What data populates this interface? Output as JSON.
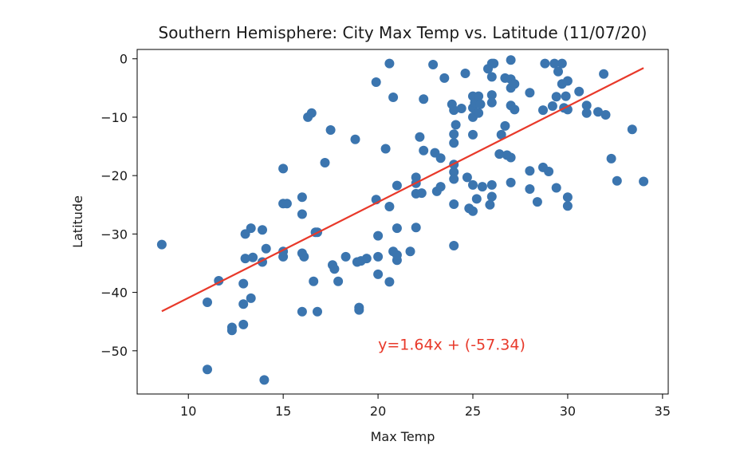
{
  "chart_data": {
    "type": "scatter",
    "title": "Southern Hemisphere: City Max Temp vs. Latitude (11/07/20)",
    "xlabel": "Max Temp",
    "ylabel": "Latitude",
    "xlim": [
      7.3,
      35.3
    ],
    "ylim": [
      -57.4,
      1.6
    ],
    "x_ticks": [
      10,
      15,
      20,
      25,
      30,
      35
    ],
    "x_tick_labels": [
      "10",
      "15",
      "20",
      "25",
      "30",
      "35"
    ],
    "y_ticks": [
      0,
      -10,
      -20,
      -30,
      -40,
      -50
    ],
    "y_tick_labels": [
      "0",
      "−10",
      "−20",
      "−30",
      "−40",
      "−50"
    ],
    "grid": false,
    "point_color": "#3b75af",
    "regression": {
      "slope": 1.64,
      "intercept": -57.34,
      "x_range": [
        8.6,
        34.0
      ],
      "color": "#e8392a",
      "label": "y=1.64x + (-57.34)",
      "label_pos": [
        20.0,
        -49.8
      ]
    },
    "points": [
      [
        8.6,
        -31.8
      ],
      [
        11.0,
        -41.7
      ],
      [
        11.0,
        -53.2
      ],
      [
        11.6,
        -38.0
      ],
      [
        12.3,
        -46.0
      ],
      [
        12.3,
        -46.5
      ],
      [
        12.9,
        -45.5
      ],
      [
        12.9,
        -38.5
      ],
      [
        12.9,
        -42.0
      ],
      [
        13.0,
        -34.2
      ],
      [
        13.0,
        -30.0
      ],
      [
        13.3,
        -29.0
      ],
      [
        13.3,
        -41.0
      ],
      [
        13.4,
        -34.0
      ],
      [
        13.9,
        -34.8
      ],
      [
        13.9,
        -29.3
      ],
      [
        14.0,
        -55.0
      ],
      [
        14.1,
        -32.5
      ],
      [
        15.0,
        -18.8
      ],
      [
        15.0,
        -24.8
      ],
      [
        15.0,
        -33.9
      ],
      [
        15.0,
        -33.0
      ],
      [
        15.2,
        -24.8
      ],
      [
        16.0,
        -23.7
      ],
      [
        16.0,
        -26.6
      ],
      [
        16.0,
        -33.3
      ],
      [
        16.0,
        -43.3
      ],
      [
        16.1,
        -33.9
      ],
      [
        16.3,
        -10.0
      ],
      [
        16.5,
        -9.3
      ],
      [
        16.6,
        -38.1
      ],
      [
        16.7,
        -29.7
      ],
      [
        16.8,
        -43.3
      ],
      [
        16.8,
        -29.7
      ],
      [
        17.2,
        -17.8
      ],
      [
        17.5,
        -12.2
      ],
      [
        17.6,
        -35.3
      ],
      [
        17.7,
        -36.0
      ],
      [
        17.9,
        -38.1
      ],
      [
        18.3,
        -33.9
      ],
      [
        18.8,
        -13.8
      ],
      [
        18.9,
        -34.8
      ],
      [
        19.0,
        -43.0
      ],
      [
        19.0,
        -42.6
      ],
      [
        19.1,
        -34.6
      ],
      [
        19.4,
        -34.2
      ],
      [
        19.9,
        -24.1
      ],
      [
        19.9,
        -4.0
      ],
      [
        20.0,
        -30.3
      ],
      [
        20.0,
        -33.9
      ],
      [
        20.0,
        -36.9
      ],
      [
        20.4,
        -15.4
      ],
      [
        20.6,
        -0.8
      ],
      [
        20.6,
        -38.2
      ],
      [
        20.6,
        -25.3
      ],
      [
        20.8,
        -6.6
      ],
      [
        20.8,
        -33.0
      ],
      [
        21.0,
        -34.5
      ],
      [
        21.0,
        -29.0
      ],
      [
        21.0,
        -21.7
      ],
      [
        21.0,
        -33.6
      ],
      [
        21.7,
        -33.0
      ],
      [
        22.0,
        -20.3
      ],
      [
        22.0,
        -23.1
      ],
      [
        22.0,
        -28.9
      ],
      [
        22.0,
        -21.3
      ],
      [
        22.2,
        -13.4
      ],
      [
        22.3,
        -23.0
      ],
      [
        22.4,
        -6.9
      ],
      [
        22.4,
        -15.7
      ],
      [
        22.9,
        -1.0
      ],
      [
        23.0,
        -16.1
      ],
      [
        23.1,
        -22.7
      ],
      [
        23.3,
        -17.0
      ],
      [
        23.3,
        -21.9
      ],
      [
        23.5,
        -3.3
      ],
      [
        23.9,
        -7.8
      ],
      [
        24.0,
        -8.8
      ],
      [
        24.0,
        -12.9
      ],
      [
        24.0,
        -14.4
      ],
      [
        24.0,
        -18.1
      ],
      [
        24.0,
        -19.4
      ],
      [
        24.0,
        -20.6
      ],
      [
        24.0,
        -24.9
      ],
      [
        24.0,
        -32.0
      ],
      [
        24.1,
        -11.3
      ],
      [
        24.4,
        -8.5
      ],
      [
        24.6,
        -2.5
      ],
      [
        24.7,
        -20.3
      ],
      [
        24.8,
        -25.6
      ],
      [
        25.0,
        -6.4
      ],
      [
        25.0,
        -8.4
      ],
      [
        25.0,
        -10.0
      ],
      [
        25.0,
        -13.0
      ],
      [
        25.0,
        -21.6
      ],
      [
        25.0,
        -26.1
      ],
      [
        25.1,
        -7.5
      ],
      [
        25.2,
        -24.0
      ],
      [
        25.3,
        -6.4
      ],
      [
        25.3,
        -9.3
      ],
      [
        25.4,
        -7.8
      ],
      [
        25.5,
        -21.9
      ],
      [
        25.8,
        -1.7
      ],
      [
        25.9,
        -25.0
      ],
      [
        26.0,
        -0.8
      ],
      [
        26.0,
        -3.1
      ],
      [
        26.0,
        -6.2
      ],
      [
        26.0,
        -7.5
      ],
      [
        26.0,
        -21.6
      ],
      [
        26.0,
        -23.6
      ],
      [
        26.1,
        -0.8
      ],
      [
        26.4,
        -16.3
      ],
      [
        26.5,
        -13.0
      ],
      [
        26.7,
        -3.3
      ],
      [
        26.7,
        -11.5
      ],
      [
        26.8,
        -16.5
      ],
      [
        27.0,
        -0.2
      ],
      [
        27.0,
        -3.5
      ],
      [
        27.0,
        -5.0
      ],
      [
        27.0,
        -8.0
      ],
      [
        27.0,
        -16.9
      ],
      [
        27.0,
        -21.2
      ],
      [
        27.2,
        -4.3
      ],
      [
        27.2,
        -8.7
      ],
      [
        28.0,
        -5.8
      ],
      [
        28.0,
        -19.2
      ],
      [
        28.0,
        -22.3
      ],
      [
        28.4,
        -24.5
      ],
      [
        28.7,
        -8.8
      ],
      [
        28.7,
        -18.6
      ],
      [
        28.8,
        -0.8
      ],
      [
        29.0,
        -19.3
      ],
      [
        29.2,
        -8.1
      ],
      [
        29.3,
        -0.8
      ],
      [
        29.4,
        -6.5
      ],
      [
        29.4,
        -22.1
      ],
      [
        29.5,
        -2.2
      ],
      [
        29.7,
        -0.8
      ],
      [
        29.7,
        -4.3
      ],
      [
        29.8,
        -8.4
      ],
      [
        29.9,
        -6.4
      ],
      [
        30.0,
        -3.8
      ],
      [
        30.0,
        -8.7
      ],
      [
        30.0,
        -23.7
      ],
      [
        30.0,
        -25.2
      ],
      [
        30.6,
        -5.6
      ],
      [
        31.0,
        -8.0
      ],
      [
        31.0,
        -9.3
      ],
      [
        31.6,
        -9.1
      ],
      [
        31.9,
        -2.6
      ],
      [
        32.0,
        -9.6
      ],
      [
        32.3,
        -17.1
      ],
      [
        32.6,
        -20.9
      ],
      [
        33.4,
        -12.1
      ],
      [
        34.0,
        -21.0
      ]
    ]
  }
}
